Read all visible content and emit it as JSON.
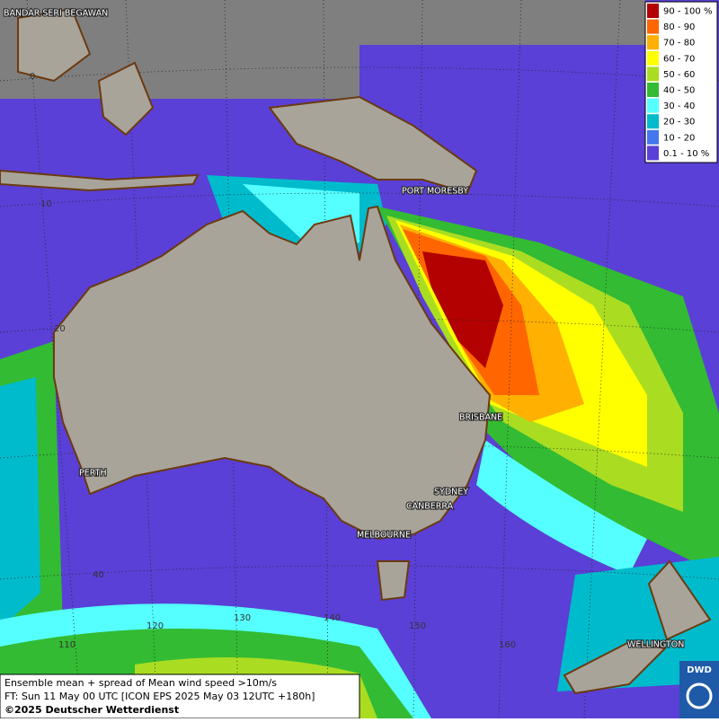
{
  "legend": [
    {
      "label": "90 - 100 %",
      "color": "#b30000"
    },
    {
      "label": "80 - 90",
      "color": "#ff6600"
    },
    {
      "label": "70 - 80",
      "color": "#ffb000"
    },
    {
      "label": "60 - 70",
      "color": "#ffff00"
    },
    {
      "label": "50 - 60",
      "color": "#aadd22"
    },
    {
      "label": "40 - 50",
      "color": "#33bb33"
    },
    {
      "label": "30 - 40",
      "color": "#55ffff"
    },
    {
      "label": "20 - 30",
      "color": "#00bbcc"
    },
    {
      "label": "10 - 20",
      "color": "#4477ee"
    },
    {
      "label": "0.1 - 10 %",
      "color": "#5a40d6"
    }
  ],
  "cities": [
    "BANDAR SERI BEGAWAN",
    "PORT MORESBY",
    "BRISBANE",
    "PERTH",
    "SYDNEY",
    "CANBERRA",
    "MELBOURNE",
    "WELLINGTON"
  ],
  "latitude_labels": [
    "0",
    "10",
    "20",
    "40"
  ],
  "longitude_labels": [
    "110",
    "120",
    "130",
    "140",
    "150",
    "160"
  ],
  "footer": {
    "line1": "Ensemble mean + spread of Mean wind speed >10m/s",
    "line2": "FT: Sun 11 May 00 UTC [ICON EPS 2025 May 03 12UTC +180h]",
    "line3": "©2025 Deutscher Wetterdienst"
  },
  "logo": "DWD"
}
